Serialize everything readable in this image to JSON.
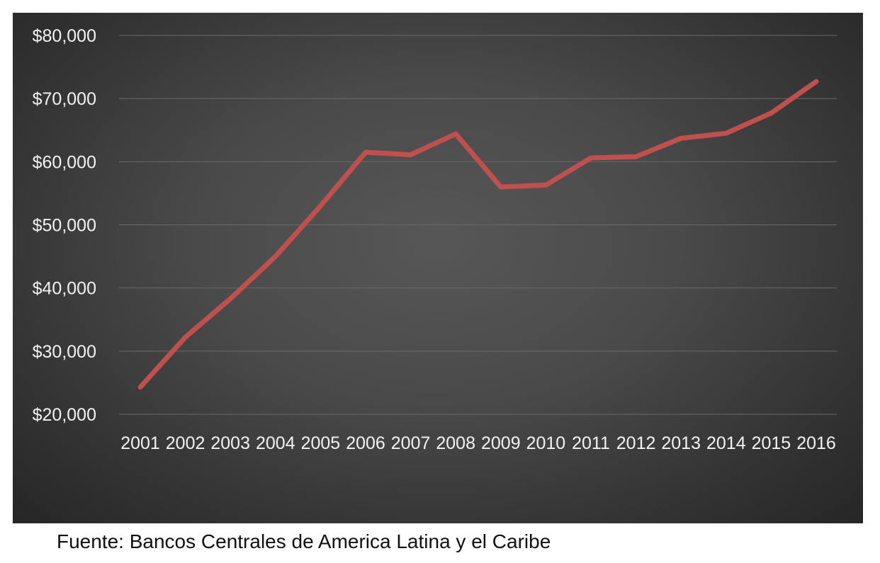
{
  "chart_data": {
    "type": "line",
    "title": "",
    "xlabel": "",
    "ylabel": "",
    "x": [
      "2001",
      "2002",
      "2003",
      "2004",
      "2005",
      "2006",
      "2007",
      "2008",
      "2009",
      "2010",
      "2011",
      "2012",
      "2013",
      "2014",
      "2015",
      "2016"
    ],
    "series": [
      {
        "values": [
          24300,
          32200,
          38300,
          45000,
          53000,
          61500,
          61100,
          64400,
          56000,
          56300,
          60600,
          60800,
          63700,
          64500,
          67700,
          72700
        ],
        "color": "#c0504d"
      }
    ],
    "ylim": [
      20000,
      80000
    ],
    "yticks": [
      20000,
      30000,
      40000,
      50000,
      60000,
      70000,
      80000
    ],
    "ytick_labels": [
      "$20,000",
      "$30,000",
      "$40,000",
      "$50,000",
      "$60,000",
      "$70,000",
      "$80,000"
    ],
    "grid": true,
    "legend": "none"
  },
  "source_note": "Fuente: Bancos Centrales de America Latina y el Caribe"
}
